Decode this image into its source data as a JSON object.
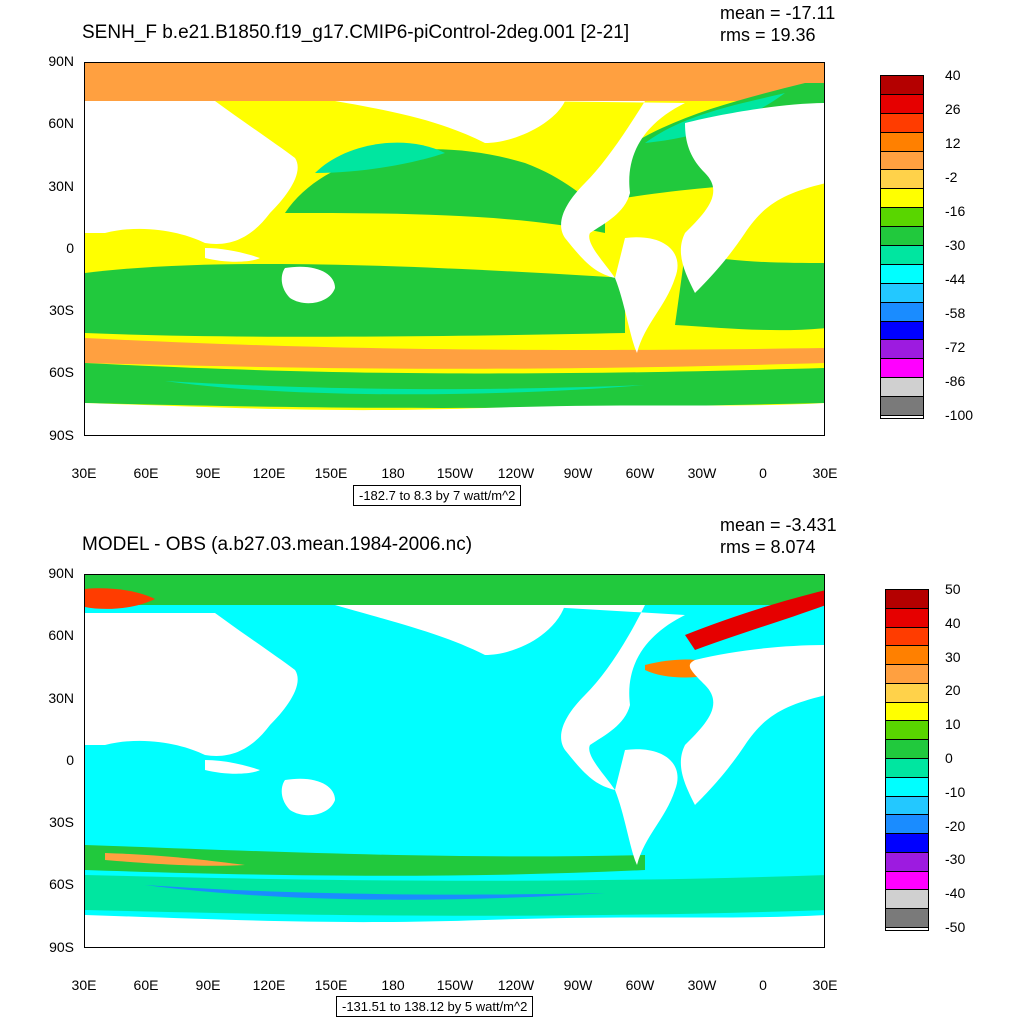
{
  "top": {
    "title": "SENH_F b.e21.B1850.f19_g17.CMIP6-piControl-2deg.001 [2-21]",
    "mean": "mean = -17.11",
    "rms": "rms = 19.36",
    "range": "-182.7 to 8.3 by 7 watt/m^2",
    "colorbar_labels": [
      "40",
      "26",
      "12",
      "-2",
      "-16",
      "-30",
      "-44",
      "-58",
      "-72",
      "-86",
      "-100"
    ],
    "colorbar_colors": [
      "#b40000",
      "#e60000",
      "#ff3c00",
      "#ff8000",
      "#ffa040",
      "#ffd24a",
      "#ffff00",
      "#59d600",
      "#21c93d",
      "#00e6a0",
      "#00ffff",
      "#23c8ff",
      "#1a8cff",
      "#0000ff",
      "#9d1be0",
      "#ff00ff",
      "#d0d0d0",
      "#7a7a7a"
    ]
  },
  "bottom": {
    "title": "MODEL - OBS (a.b27.03.mean.1984-2006.nc)",
    "mean": "mean = -3.431",
    "rms": "rms = 8.074",
    "range": "-131.51 to 138.12 by 5 watt/m^2",
    "colorbar_labels": [
      "50",
      "40",
      "30",
      "20",
      "10",
      "0",
      "-10",
      "-20",
      "-30",
      "-40",
      "-50"
    ],
    "colorbar_colors": [
      "#b40000",
      "#e60000",
      "#ff3c00",
      "#ff8000",
      "#ffa040",
      "#ffd24a",
      "#ffff00",
      "#59d600",
      "#21c93d",
      "#00e6a0",
      "#00ffff",
      "#23c8ff",
      "#1a8cff",
      "#0000ff",
      "#9d1be0",
      "#ff00ff",
      "#d0d0d0",
      "#7a7a7a"
    ]
  },
  "axes": {
    "y_ticks": [
      "90N",
      "60N",
      "30N",
      "0",
      "30S",
      "60S",
      "90S"
    ],
    "x_ticks": [
      "30E",
      "60E",
      "90E",
      "120E",
      "150E",
      "180",
      "150W",
      "120W",
      "90W",
      "60W",
      "30W",
      "0",
      "30E"
    ]
  }
}
